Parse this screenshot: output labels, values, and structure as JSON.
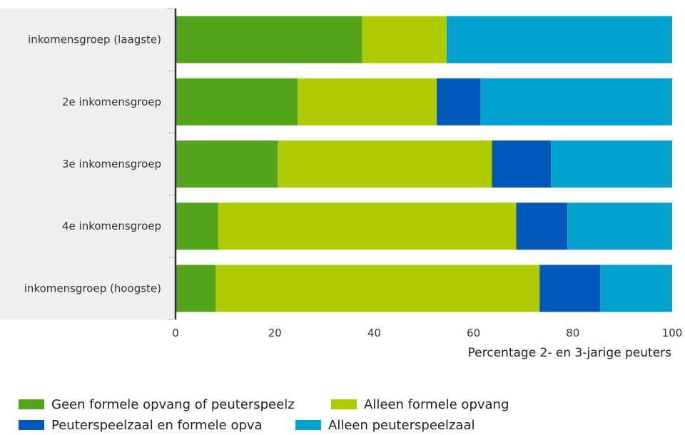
{
  "chart_data": {
    "type": "bar",
    "orientation": "horizontal",
    "stacked": true,
    "categories": [
      "inkomensgroep (laagste)",
      "2e inkomensgroep",
      "3e inkomensgroep",
      "4e inkomensgroep",
      "inkomensgroep (hoogste)"
    ],
    "series": [
      {
        "name": "Geen formele opvang of peuterspeelzaal",
        "color": "#55a51c",
        "values": [
          37.6,
          24.6,
          20.6,
          8.6,
          8.1
        ]
      },
      {
        "name": "Alleen formele opvang",
        "color": "#afcb05",
        "values": [
          17.0,
          28.0,
          43.1,
          60.0,
          65.2
        ]
      },
      {
        "name": "Peuterspeelzaal en formele opvang",
        "color": "#0058b8",
        "values": [
          0.0,
          8.8,
          11.9,
          10.3,
          12.2
        ]
      },
      {
        "name": "Alleen peuterspeelzaal",
        "color": "#00a1cd",
        "values": [
          45.4,
          38.6,
          24.4,
          21.1,
          14.5
        ]
      }
    ],
    "xlabel": "Percentage 2- en 3-jarige peuters",
    "ylabel": "",
    "xlim": [
      0,
      100
    ],
    "xticks": [
      "0",
      "20",
      "40",
      "60",
      "80",
      "100"
    ],
    "grid": false,
    "legend_position": "bottom",
    "legend_labels_visible": [
      "Geen formele opvang of peuterspeelz",
      "Alleen formele opvang",
      "Peuterspeelzaal en formele opva",
      "Alleen peuterspeelzaal"
    ],
    "category_panel_color": "#efefef",
    "axis_color": "#333333"
  }
}
